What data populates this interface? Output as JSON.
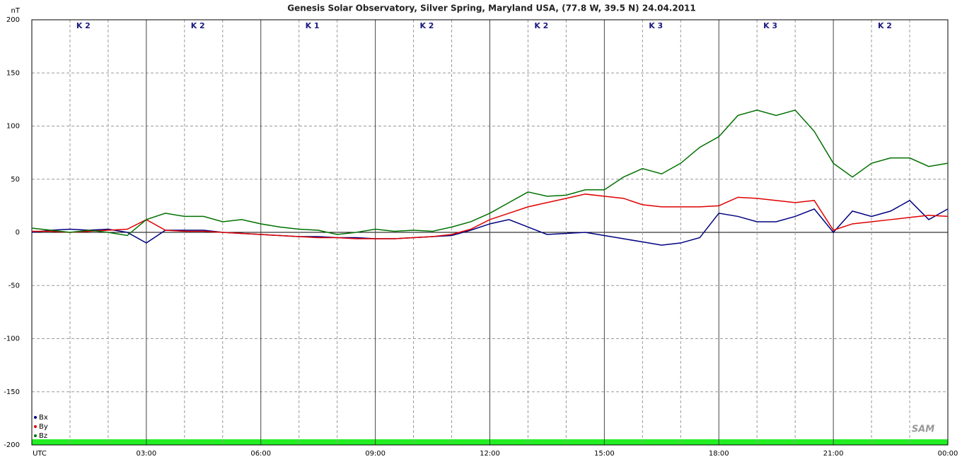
{
  "chart_data": {
    "type": "line",
    "title": "Genesis Solar Observatory, Silver Spring, Maryland USA, (77.8 W, 39.5 N)  24.04.2011",
    "y_label": "nT",
    "logo": "SAM",
    "k_index": [
      "K 2",
      "K 2",
      "K 1",
      "K 2",
      "K 2",
      "K 3",
      "K 3",
      "K 2"
    ],
    "xlim": [
      0,
      24
    ],
    "xticks": [
      {
        "value": 0,
        "label": "UTC"
      },
      {
        "value": 3,
        "label": "03:00"
      },
      {
        "value": 6,
        "label": "06:00"
      },
      {
        "value": 9,
        "label": "09:00"
      },
      {
        "value": 12,
        "label": "12:00"
      },
      {
        "value": 15,
        "label": "15:00"
      },
      {
        "value": 18,
        "label": "18:00"
      },
      {
        "value": 21,
        "label": "21:00"
      },
      {
        "value": 24,
        "label": "00:00"
      }
    ],
    "ylim": [
      -200,
      200
    ],
    "yticks": [
      -200,
      -150,
      -100,
      -50,
      0,
      50,
      100,
      150,
      200
    ],
    "grid": true,
    "x": [
      0,
      0.5,
      1,
      1.5,
      2,
      2.5,
      3,
      3.5,
      4,
      4.5,
      5,
      5.5,
      6,
      6.5,
      7,
      7.5,
      8,
      8.5,
      9,
      9.5,
      10,
      10.5,
      11,
      11.5,
      12,
      12.5,
      13,
      13.5,
      14,
      14.5,
      15,
      15.5,
      16,
      16.5,
      17,
      17.5,
      18,
      18.5,
      19,
      19.5,
      20,
      20.5,
      21,
      21.5,
      22,
      22.5,
      23,
      23.5,
      24
    ],
    "series": [
      {
        "name": "Bx",
        "color": "#000080",
        "values": [
          0,
          2,
          3,
          2,
          3,
          0,
          -10,
          2,
          2,
          2,
          0,
          -1,
          -2,
          -3,
          -4,
          -4,
          -5,
          -5,
          -6,
          -6,
          -5,
          -4,
          -3,
          2,
          8,
          12,
          5,
          -2,
          -1,
          0,
          -3,
          -6,
          -9,
          -12,
          -10,
          -5,
          18,
          15,
          10,
          10,
          15,
          22,
          0,
          20,
          15,
          20,
          30,
          12,
          22
        ]
      },
      {
        "name": "By",
        "color": "#e00000",
        "values": [
          1,
          1,
          0,
          1,
          2,
          3,
          12,
          2,
          1,
          1,
          0,
          -1,
          -2,
          -3,
          -4,
          -5,
          -5,
          -6,
          -6,
          -6,
          -5,
          -4,
          -2,
          3,
          12,
          18,
          24,
          28,
          32,
          36,
          34,
          32,
          26,
          24,
          24,
          24,
          25,
          33,
          32,
          30,
          28,
          30,
          2,
          8,
          10,
          12,
          14,
          16,
          15
        ]
      },
      {
        "name": "Bz",
        "color": "#007000",
        "values": [
          4,
          2,
          0,
          2,
          0,
          -3,
          12,
          18,
          15,
          15,
          10,
          12,
          8,
          5,
          3,
          2,
          -2,
          0,
          3,
          1,
          2,
          1,
          5,
          10,
          18,
          28,
          38,
          34,
          35,
          40,
          40,
          52,
          60,
          55,
          65,
          80,
          90,
          110,
          115,
          110,
          115,
          95,
          65,
          52,
          65,
          70,
          70,
          62,
          65
        ]
      }
    ]
  }
}
